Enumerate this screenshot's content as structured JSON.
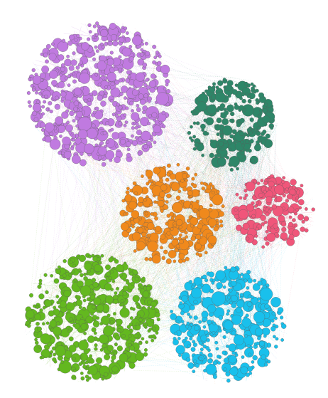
{
  "graph": {
    "node_stroke": "#5a5a5a",
    "clusters": [
      {
        "id": "purple",
        "color": "#c07ae0"
      },
      {
        "id": "teal",
        "color": "#2e8668"
      },
      {
        "id": "orange",
        "color": "#f0891c"
      },
      {
        "id": "pink",
        "color": "#f0567a"
      },
      {
        "id": "green",
        "color": "#63b81f"
      },
      {
        "id": "cyan",
        "color": "#19c0ec"
      }
    ]
  }
}
